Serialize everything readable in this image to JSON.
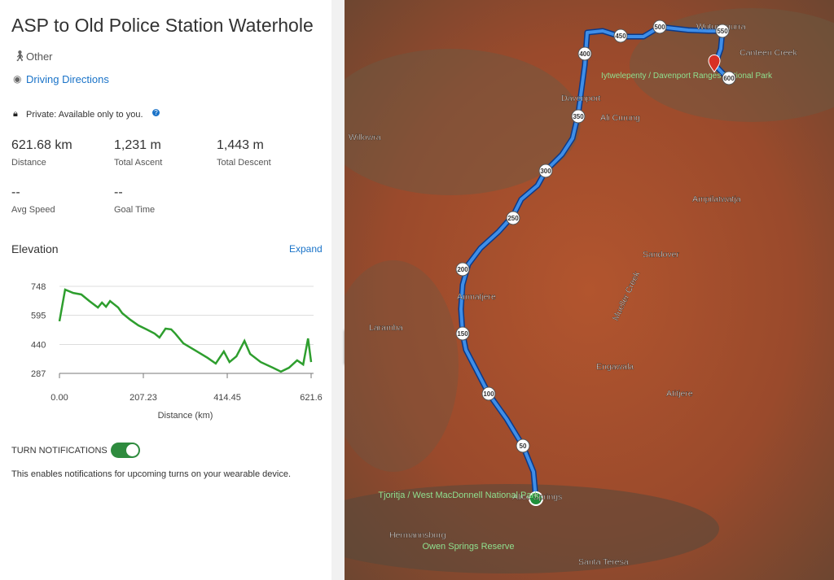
{
  "header": {
    "title": "ASP to Old Police Station Waterhole"
  },
  "activity_type": "Other",
  "directions_link": "Driving Directions",
  "privacy": "Private: Available only to you.",
  "stats": [
    {
      "value": "621.68 km",
      "label": "Distance"
    },
    {
      "value": "1,231 m",
      "label": "Total Ascent"
    },
    {
      "value": "1,443 m",
      "label": "Total Descent"
    },
    {
      "value": "--",
      "label": "Avg Speed"
    },
    {
      "value": "--",
      "label": "Goal Time"
    }
  ],
  "elevation": {
    "title": "Elevation",
    "expand": "Expand",
    "x_label": "Distance (km)",
    "xlim": [
      0,
      621.6
    ],
    "ylim": [
      287,
      748
    ],
    "xticks": [
      {
        "value": 0,
        "label": "0.00"
      },
      207.23,
      414.45,
      621.6
    ],
    "yticks": [
      287,
      440,
      595,
      748
    ],
    "x": [
      0,
      14,
      34,
      54,
      74,
      95,
      105,
      115,
      125,
      135,
      145,
      155,
      175,
      195,
      215,
      235,
      247,
      262,
      276,
      286,
      306,
      336,
      366,
      386,
      406,
      420,
      437,
      457,
      471,
      497,
      527,
      547,
      567,
      587,
      602,
      614,
      621.6
    ],
    "values": [
      563,
      731,
      713,
      705,
      670,
      636,
      662,
      640,
      670,
      653,
      636,
      606,
      571,
      541,
      520,
      498,
      477,
      524,
      520,
      498,
      446,
      408,
      369,
      339,
      403,
      347,
      377,
      459,
      390,
      347,
      317,
      296,
      317,
      356,
      334,
      472,
      347
    ],
    "color": "#2e9e2e"
  },
  "turn_notifications": {
    "label": "TURN NOTIFICATIONS",
    "description": "This enables notifications for upcoming turns on your wearable device."
  },
  "map": {
    "places": [
      "Willowra",
      "Davenport",
      "Ali Curung",
      "Canteen Creek",
      "Wutunugurra",
      "Ampilatwatja",
      "Sandover",
      "Anmatjere",
      "Laramba",
      "Engawala",
      "Atitjere",
      "Mueller Creek",
      "Alice Springs",
      "Hermannsburg",
      "Santa Teresa"
    ],
    "parks": [
      "Iytwelepenty / Davenport Ranges National Park",
      "Tjoritja / West MacDonnell National Park",
      "Owen Springs Reserve"
    ],
    "route_markers": [
      "50",
      "100",
      "150",
      "200",
      "250",
      "300",
      "350",
      "400",
      "450",
      "500",
      "550",
      "600"
    ]
  }
}
